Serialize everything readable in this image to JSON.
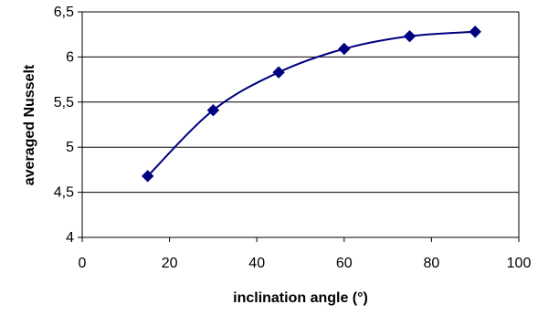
{
  "chart_data": {
    "type": "line",
    "xlabel": "inclination angle (°)",
    "ylabel": "averaged Nusselt",
    "xlim": [
      0,
      100
    ],
    "ylim": [
      4,
      6.5
    ],
    "x_ticks": [
      0,
      20,
      40,
      60,
      80,
      100
    ],
    "y_ticks": [
      4,
      4.5,
      5,
      5.5,
      6,
      6.5
    ],
    "x_tick_labels": [
      "0",
      "20",
      "40",
      "60",
      "80",
      "100"
    ],
    "y_tick_labels": [
      "4",
      "4,5",
      "5",
      "5,5",
      "6",
      "6,5"
    ],
    "grid": "horizontal",
    "legend": "none",
    "series": [
      {
        "x": [
          15,
          30,
          45,
          60,
          75,
          90
        ],
        "values": [
          4.68,
          5.41,
          5.83,
          6.09,
          6.23,
          6.28
        ],
        "marker": "diamond",
        "smooth": true,
        "color": "#000080"
      }
    ]
  }
}
